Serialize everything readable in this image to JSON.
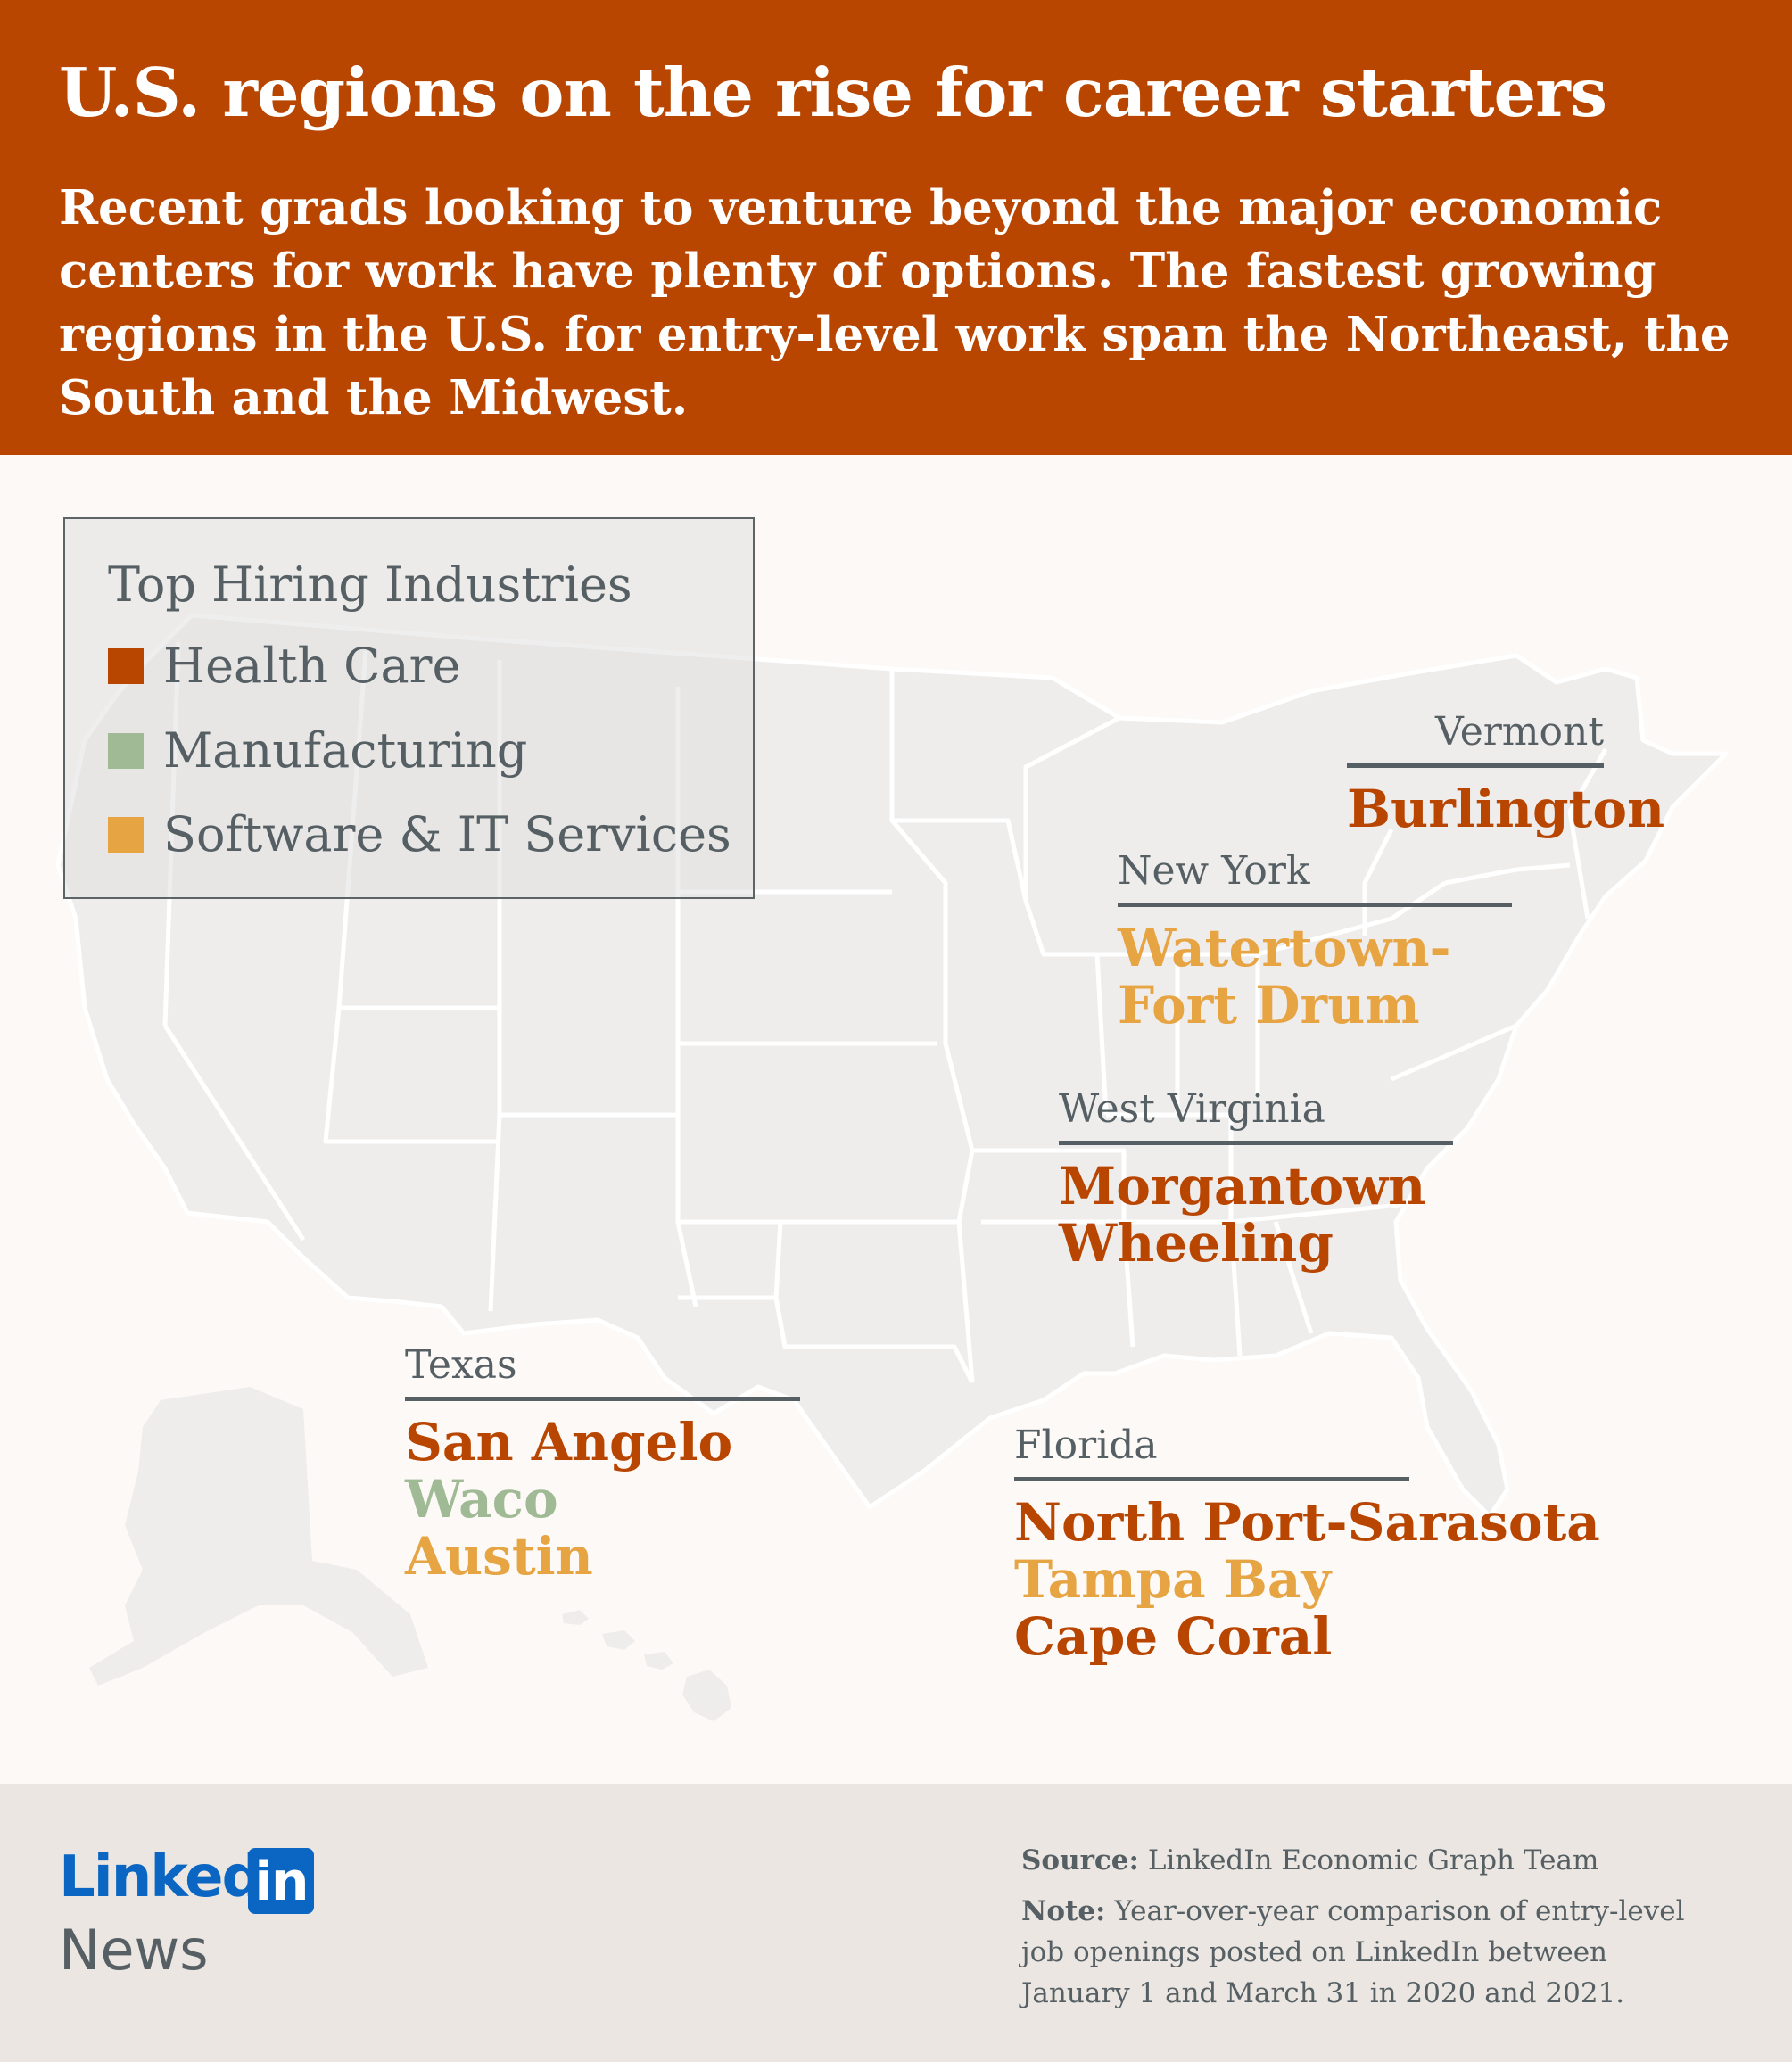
{
  "header": {
    "title": "U.S. regions on the rise for career starters",
    "subtitle": "Recent grads looking to venture beyond the major economic centers for work have plenty of options. The fastest growing regions in the U.S. for entry-level work span the Northeast, the South and the Midwest."
  },
  "colors": {
    "header_bg": "#b84500",
    "health_care": "#b84500",
    "manufacturing": "#9fba94",
    "software_it": "#e6a443",
    "label_gray": "#566064",
    "map_fill": "#efedec",
    "map_border": "#ffffff"
  },
  "legend": {
    "title": "Top Hiring Industries",
    "items": [
      {
        "label": "Health Care",
        "color": "#b84500"
      },
      {
        "label": "Manufacturing",
        "color": "#9fba94"
      },
      {
        "label": "Software & IT Services",
        "color": "#e6a443"
      }
    ]
  },
  "regions": {
    "vermont": {
      "state": "Vermont",
      "cities": [
        {
          "name": "Burlington",
          "color": "#b84500"
        }
      ]
    },
    "new_york": {
      "state": "New York",
      "cities": [
        {
          "name": "Watertown-",
          "color": "#e6a443"
        },
        {
          "name": "Fort Drum",
          "color": "#e6a443"
        }
      ]
    },
    "west_virginia": {
      "state": "West Virginia",
      "cities": [
        {
          "name": "Morgantown",
          "color": "#b84500"
        },
        {
          "name": "Wheeling",
          "color": "#b84500"
        }
      ]
    },
    "texas": {
      "state": "Texas",
      "cities": [
        {
          "name": "San Angelo",
          "color": "#b84500"
        },
        {
          "name": "Waco",
          "color": "#9fba94"
        },
        {
          "name": "Austin",
          "color": "#e6a443"
        }
      ]
    },
    "florida": {
      "state": "Florida",
      "cities": [
        {
          "name": "North Port-Sarasota",
          "color": "#b84500"
        },
        {
          "name": "Tampa Bay",
          "color": "#e6a443"
        },
        {
          "name": "Cape Coral",
          "color": "#b84500"
        }
      ]
    }
  },
  "footer": {
    "logo_linked": "Linked",
    "logo_in": "in",
    "logo_news": "News",
    "source_label": "Source:",
    "source_text": " LinkedIn Economic Graph Team",
    "note_label": "Note:",
    "note_text": " Year-over-year comparison of entry-level job openings posted on LinkedIn between January 1 and March 31 in 2020 and 2021."
  }
}
